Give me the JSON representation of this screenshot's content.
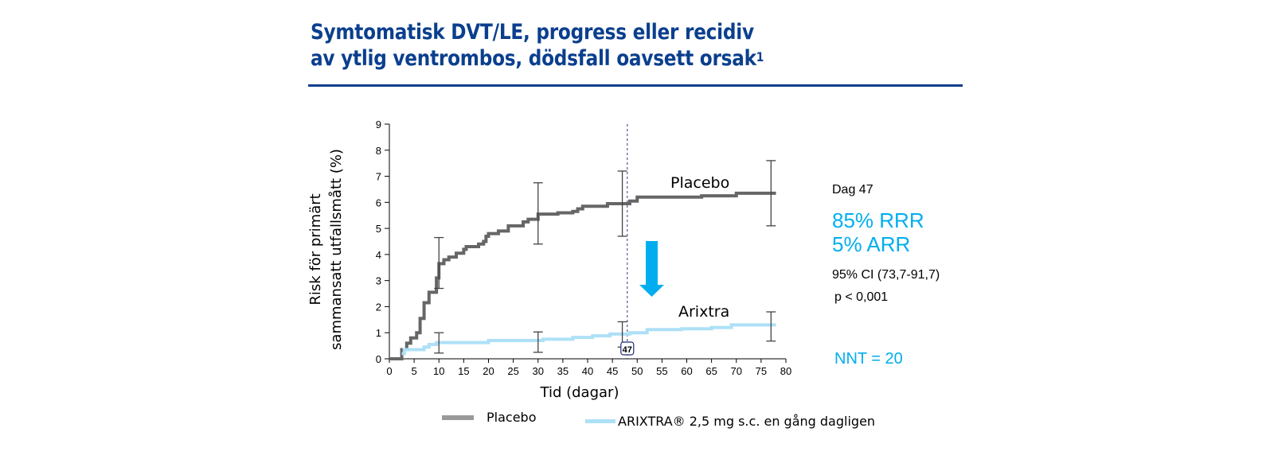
{
  "title": {
    "line1": "Symtomatisk DVT/LE, progress eller recidiv",
    "line2": "av ytlig ventrombos, dödsfall oavsett orsak",
    "sup": "1"
  },
  "stats": {
    "day": "Dag 47",
    "rrr": "85% RRR",
    "arr": "5% ARR",
    "ci": "95% CI (73,7-91,7)",
    "p": "p < 0,001",
    "nnt": "NNT = 20"
  },
  "colors": {
    "title": "#0b3f8e",
    "accent": "#00aeef",
    "placebo": "#666666",
    "arixtra": "#aee0f6"
  },
  "chart_data": {
    "type": "line",
    "xlabel": "Tid (dagar)",
    "ylabel": [
      "Risk för primärt",
      "sammansatt utfallsmått (%)"
    ],
    "xlim": [
      0,
      80
    ],
    "ylim": [
      0,
      9
    ],
    "xticks": [
      0,
      5,
      10,
      15,
      20,
      25,
      30,
      35,
      40,
      45,
      50,
      55,
      60,
      65,
      70,
      75,
      80
    ],
    "yticks": [
      0,
      1,
      2,
      3,
      4,
      5,
      6,
      7,
      8,
      9
    ],
    "grid": false,
    "marker_day": 48,
    "marker_label": "47",
    "series": [
      {
        "name": "Placebo",
        "label": "Placebo",
        "legend": "Placebo",
        "steps": [
          [
            0.3,
            0
          ],
          [
            2.5,
            0.35
          ],
          [
            3.5,
            0.6
          ],
          [
            4.3,
            0.8
          ],
          [
            5.5,
            1.0
          ],
          [
            6.2,
            1.55
          ],
          [
            7,
            2.15
          ],
          [
            8,
            2.55
          ],
          [
            9.5,
            3.1
          ],
          [
            10,
            3.65
          ],
          [
            11,
            3.8
          ],
          [
            12,
            3.9
          ],
          [
            13.5,
            4.05
          ],
          [
            15,
            4.2
          ],
          [
            15.5,
            4.3
          ],
          [
            18,
            4.4
          ],
          [
            19,
            4.5
          ],
          [
            19.5,
            4.7
          ],
          [
            20,
            4.8
          ],
          [
            22,
            4.9
          ],
          [
            24,
            5.1
          ],
          [
            27,
            5.25
          ],
          [
            28,
            5.35
          ],
          [
            30,
            5.55
          ],
          [
            34,
            5.6
          ],
          [
            37,
            5.65
          ],
          [
            38,
            5.75
          ],
          [
            39,
            5.85
          ],
          [
            44,
            5.95
          ],
          [
            48.5,
            6.05
          ],
          [
            50,
            6.2
          ],
          [
            63,
            6.25
          ],
          [
            70,
            6.35
          ]
        ],
        "end_x": 78,
        "error_bars": [
          [
            10,
            2.7,
            4.65
          ],
          [
            30,
            4.4,
            6.75
          ],
          [
            47,
            4.7,
            7.2
          ],
          [
            77,
            5.1,
            7.6
          ]
        ]
      },
      {
        "name": "Arixtra",
        "label": "Arixtra",
        "legend": "ARIXTRA® 2,5 mg s.c. en gång dagligen",
        "steps": [
          [
            2.5,
            0.2
          ],
          [
            3,
            0.35
          ],
          [
            7,
            0.45
          ],
          [
            8,
            0.55
          ],
          [
            9.5,
            0.62
          ],
          [
            20,
            0.7
          ],
          [
            31,
            0.75
          ],
          [
            37,
            0.82
          ],
          [
            41,
            0.88
          ],
          [
            44.5,
            0.95
          ],
          [
            48.5,
            1.0
          ],
          [
            52,
            1.12
          ],
          [
            59,
            1.15
          ],
          [
            65,
            1.2
          ],
          [
            69,
            1.3
          ]
        ],
        "end_x": 78,
        "error_bars": [
          [
            10,
            0.22,
            1.0
          ],
          [
            30,
            0.25,
            1.03
          ],
          [
            47,
            0.45,
            1.42
          ],
          [
            77,
            0.68,
            1.8
          ]
        ]
      }
    ]
  }
}
